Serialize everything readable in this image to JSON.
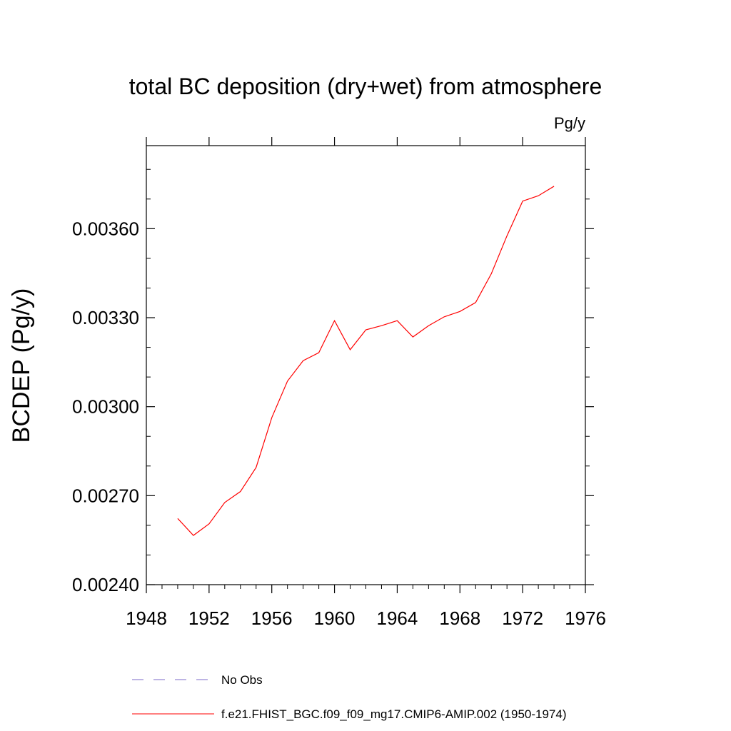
{
  "chart_data": {
    "type": "line",
    "title": "total BC deposition (dry+wet) from atmosphere",
    "units_label": "Pg/y",
    "xlabel": "",
    "ylabel": "BCDEP  (Pg/y)",
    "xlim": [
      1948,
      1976
    ],
    "ylim": [
      0.0024,
      0.00388
    ],
    "x_ticks": [
      1948,
      1952,
      1956,
      1960,
      1964,
      1968,
      1972,
      1976
    ],
    "x_tick_labels": [
      "1948",
      "1952",
      "1956",
      "1960",
      "1964",
      "1968",
      "1972",
      "1976"
    ],
    "y_ticks": [
      0.0024,
      0.0027,
      0.003,
      0.0033,
      0.0036
    ],
    "y_tick_labels": [
      "0.00240",
      "0.00270",
      "0.00300",
      "0.00330",
      "0.00360"
    ],
    "grid": false,
    "legend_position": "bottom",
    "series": [
      {
        "name": "No Obs",
        "color": "#7b68c8",
        "dash": "dashed",
        "x": [],
        "values": []
      },
      {
        "name": "f.e21.FHIST_BGC.f09_f09_mg17.CMIP6-AMIP.002 (1950-1974)",
        "color": "#ff0000",
        "dash": "solid",
        "x": [
          1950,
          1951,
          1952,
          1953,
          1954,
          1955,
          1956,
          1957,
          1958,
          1959,
          1960,
          1961,
          1962,
          1963,
          1964,
          1965,
          1966,
          1967,
          1968,
          1969,
          1970,
          1971,
          1972,
          1973,
          1974
        ],
        "values": [
          0.002623,
          0.002566,
          0.002605,
          0.002677,
          0.002714,
          0.002795,
          0.002963,
          0.003086,
          0.003155,
          0.003182,
          0.00329,
          0.003192,
          0.003259,
          0.003273,
          0.00329,
          0.003235,
          0.003273,
          0.003303,
          0.003321,
          0.003351,
          0.003448,
          0.003576,
          0.003693,
          0.003711,
          0.003743
        ]
      }
    ]
  }
}
